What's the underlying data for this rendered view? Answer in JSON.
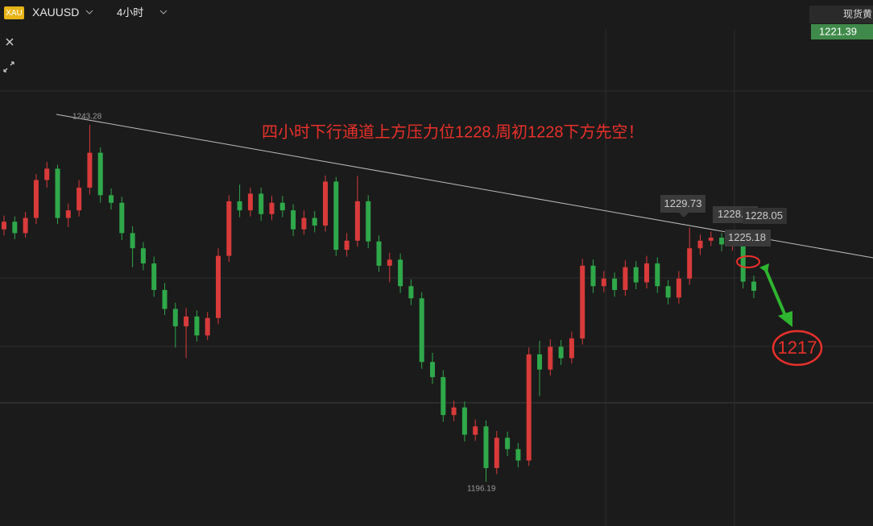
{
  "toolbar": {
    "badge": "XAU",
    "symbol": "XAUUSD",
    "timeframe": "4小时"
  },
  "price_box": {
    "label": "现货黄",
    "price": 1221.39
  },
  "chart": {
    "type": "candlestick",
    "ylim": [
      1190.36,
      1259.75
    ],
    "up_color": "#d93a3a",
    "down_color": "#2fa84a",
    "candles": [
      [
        1229.5,
        1231.3,
        1228.7,
        1230.5
      ],
      [
        1230.5,
        1231.2,
        1228.2,
        1229
      ],
      [
        1229,
        1231.8,
        1228.4,
        1231
      ],
      [
        1231,
        1236.8,
        1230.2,
        1236
      ],
      [
        1236,
        1238.4,
        1235,
        1237.5
      ],
      [
        1237.5,
        1238,
        1230.2,
        1231
      ],
      [
        1231,
        1232.9,
        1229.8,
        1232
      ],
      [
        1232,
        1236,
        1231.2,
        1235
      ],
      [
        1235,
        1243.28,
        1234.1,
        1239.6
      ],
      [
        1239.6,
        1240.3,
        1233,
        1234
      ],
      [
        1234,
        1234.9,
        1232.1,
        1233
      ],
      [
        1233,
        1233.8,
        1228.1,
        1229
      ],
      [
        1229,
        1229.9,
        1224.5,
        1227
      ],
      [
        1227,
        1227.8,
        1224.1,
        1225
      ],
      [
        1225,
        1225.9,
        1220.6,
        1221.5
      ],
      [
        1221.5,
        1222.4,
        1218.2,
        1219
      ],
      [
        1219,
        1219.8,
        1213.9,
        1216.7
      ],
      [
        1216.7,
        1219.1,
        1212.5,
        1218
      ],
      [
        1218,
        1218.8,
        1214.7,
        1215.5
      ],
      [
        1215.5,
        1218.6,
        1214.9,
        1217.8
      ],
      [
        1217.8,
        1227,
        1217,
        1226
      ],
      [
        1226,
        1234,
        1225.2,
        1233.2
      ],
      [
        1233.2,
        1235.4,
        1231.1,
        1232
      ],
      [
        1232,
        1235,
        1231.2,
        1234.2
      ],
      [
        1234.2,
        1235,
        1230.6,
        1231.5
      ],
      [
        1231.5,
        1233.9,
        1230.7,
        1233
      ],
      [
        1233,
        1233.9,
        1231.1,
        1232
      ],
      [
        1232,
        1232.8,
        1228.6,
        1229.5
      ],
      [
        1229.5,
        1232,
        1228.8,
        1231
      ],
      [
        1231,
        1231.9,
        1229.1,
        1230
      ],
      [
        1230,
        1236.6,
        1229.2,
        1235.8
      ],
      [
        1235.8,
        1236.4,
        1226,
        1226.8
      ],
      [
        1226.8,
        1229,
        1225.9,
        1228
      ],
      [
        1228,
        1236.5,
        1227.2,
        1233.2
      ],
      [
        1233.2,
        1234,
        1227,
        1227.9
      ],
      [
        1227.9,
        1228.7,
        1223.9,
        1224.7
      ],
      [
        1224.7,
        1226.4,
        1222.5,
        1225.5
      ],
      [
        1225.5,
        1226.3,
        1221.1,
        1222
      ],
      [
        1222,
        1222.9,
        1219.5,
        1220.4
      ],
      [
        1220.4,
        1221.2,
        1211.1,
        1212
      ],
      [
        1212,
        1213.2,
        1209.1,
        1210
      ],
      [
        1210,
        1210.9,
        1204.1,
        1205
      ],
      [
        1205,
        1206.9,
        1204.2,
        1206
      ],
      [
        1206,
        1206.8,
        1201.5,
        1202.4
      ],
      [
        1202.4,
        1204.4,
        1201.6,
        1203.5
      ],
      [
        1203.5,
        1204.3,
        1196.19,
        1198
      ],
      [
        1198,
        1202.9,
        1197.2,
        1202
      ],
      [
        1202,
        1202.8,
        1199.6,
        1200.5
      ],
      [
        1200.5,
        1201.3,
        1198.1,
        1199
      ],
      [
        1199,
        1213.9,
        1198.3,
        1213
      ],
      [
        1213,
        1214.8,
        1207.5,
        1211
      ],
      [
        1211,
        1215,
        1210.2,
        1214
      ],
      [
        1214,
        1214.9,
        1211.6,
        1212.5
      ],
      [
        1212.5,
        1216,
        1211.8,
        1215.1
      ],
      [
        1215.1,
        1225.6,
        1214.3,
        1224.7
      ],
      [
        1224.7,
        1225.5,
        1221.1,
        1222
      ],
      [
        1222,
        1224,
        1221.2,
        1223
      ],
      [
        1223,
        1223.8,
        1220.6,
        1221.5
      ],
      [
        1221.5,
        1225.4,
        1220.7,
        1224.5
      ],
      [
        1224.5,
        1225.3,
        1221.6,
        1222.5
      ],
      [
        1222.5,
        1226,
        1221.7,
        1225
      ],
      [
        1225,
        1225.8,
        1221.1,
        1222
      ],
      [
        1222,
        1222.8,
        1219.6,
        1220.5
      ],
      [
        1220.5,
        1224,
        1219.7,
        1223
      ],
      [
        1223,
        1229.73,
        1222.2,
        1227
      ],
      [
        1227,
        1228.8,
        1226.1,
        1228
      ],
      [
        1228,
        1229.2,
        1227.3,
        1228.4
      ],
      [
        1228.4,
        1229,
        1226.6,
        1227.5
      ],
      [
        1227.5,
        1229.3,
        1226.7,
        1228.6
      ],
      [
        1228.6,
        1229.4,
        1221.7,
        1222.6
      ],
      [
        1222.6,
        1223.4,
        1220.4,
        1221.39
      ]
    ]
  },
  "annotations": {
    "note": "四小时下行通道上方压力位1228.周初1228下方先空！",
    "target": 1217,
    "high_label": 1243.28,
    "low_label": 1196.19,
    "label_a": 1229.73,
    "label_b": "1228.",
    "label_c": 1228.05,
    "label_d": 1225.18
  }
}
